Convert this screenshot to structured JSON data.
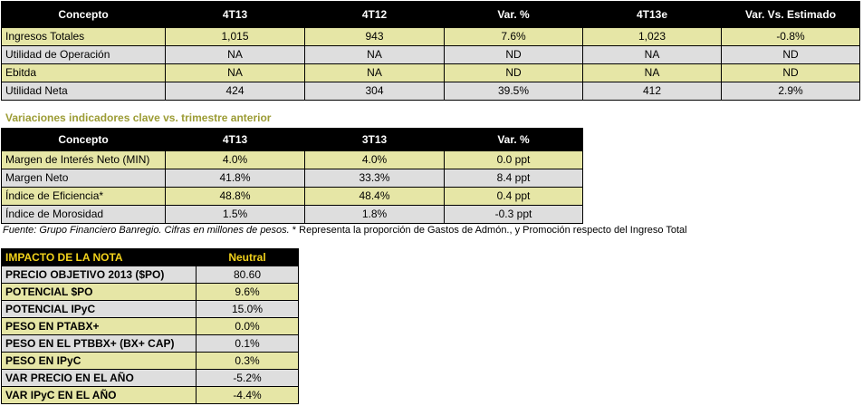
{
  "table1": {
    "headers": [
      "Concepto",
      "4T13",
      "4T12",
      "Var. %",
      "4T13e",
      "Var. Vs. Estimado"
    ],
    "rows": [
      [
        "Ingresos Totales",
        "1,015",
        "943",
        "7.6%",
        "1,023",
        "-0.8%"
      ],
      [
        "Utilidad de Operación",
        "NA",
        "NA",
        "ND",
        "NA",
        "ND"
      ],
      [
        "Ebitda",
        "NA",
        "NA",
        "ND",
        "NA",
        "ND"
      ],
      [
        "Utilidad Neta",
        "424",
        "304",
        "39.5%",
        "412",
        "2.9%"
      ]
    ]
  },
  "subtitle": "Variaciones indicadores clave vs. trimestre anterior",
  "table2": {
    "headers": [
      "Concepto",
      "4T13",
      "3T13",
      "Var. %"
    ],
    "rows": [
      [
        "Margen de Interés Neto (MIN)",
        "4.0%",
        "4.0%",
        "0.0 ppt"
      ],
      [
        "Margen Neto",
        "41.8%",
        "33.3%",
        "8.4 ppt"
      ],
      [
        "Índice de Eficiencia*",
        "48.8%",
        "48.4%",
        "0.4 ppt"
      ],
      [
        "Índice de Morosidad",
        "1.5%",
        "1.8%",
        "-0.3 ppt"
      ]
    ]
  },
  "footnote": {
    "source": "Fuente: Grupo Financiero Banregio. Cifras en millones de pesos.",
    "note": " * Representa la proporción de Gastos de Admón., y Promoción respecto del Ingreso Total"
  },
  "table3": {
    "headers": [
      "IMPACTO DE LA NOTA",
      "Neutral"
    ],
    "rows": [
      [
        "PRECIO OBJETIVO 2013 ($PO)",
        "80.60"
      ],
      [
        "POTENCIAL $PO",
        "9.6%"
      ],
      [
        "POTENCIAL IPyC",
        "15.0%"
      ],
      [
        "PESO EN PTABX+",
        "0.0%"
      ],
      [
        "PESO EN EL PTBBX+ (BX+ CAP)",
        "0.1%"
      ],
      [
        "PESO EN IPyC",
        "0.3%"
      ],
      [
        "VAR PRECIO EN EL AÑO",
        "-5.2%"
      ],
      [
        "VAR IPyC EN EL AÑO",
        "-4.4%"
      ]
    ]
  },
  "colors": {
    "header_bg": "#000000",
    "olive_row": "#e6e6a6",
    "grey_row": "#dedede",
    "subtitle": "#9c9c35",
    "impact_text": "#f2d21b"
  }
}
